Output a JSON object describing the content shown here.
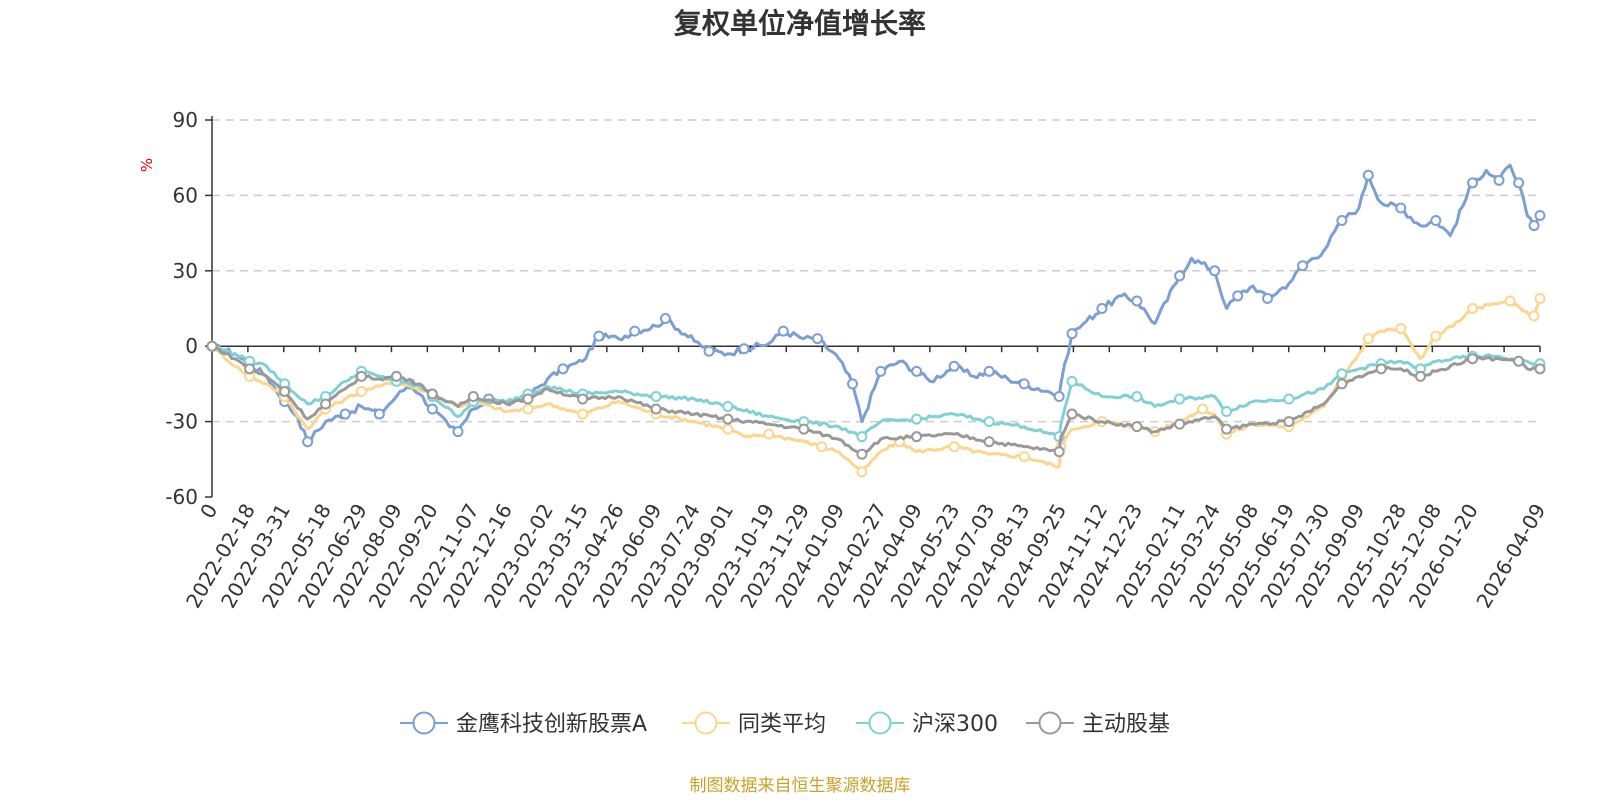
{
  "chart_data": {
    "type": "line",
    "title": "复权单位净值增长率",
    "ylabel": "%",
    "ylim": [
      -60,
      90
    ],
    "yticks": [
      -60,
      -30,
      0,
      30,
      60,
      90
    ],
    "xlim": [
      "2022-01-05",
      "2026-04-09"
    ],
    "x_start_label": "0",
    "x_tick_labels": [
      "2022-02-18",
      "2022-03-31",
      "2022-05-18",
      "2022-06-29",
      "2022-08-09",
      "2022-09-20",
      "2022-11-07",
      "2022-12-16",
      "2023-02-02",
      "2023-03-15",
      "2023-04-26",
      "2023-06-09",
      "2023-07-24",
      "2023-09-01",
      "2023-10-19",
      "2023-11-29",
      "2024-01-09",
      "2024-02-27",
      "2024-04-09",
      "2024-05-23",
      "2024-07-03",
      "2024-08-13",
      "2024-09-25",
      "2024-11-12",
      "2024-12-23",
      "2025-02-11",
      "2025-03-24",
      "2025-05-08",
      "2025-06-19",
      "2025-07-30",
      "2025-09-09",
      "2025-10-28",
      "2025-12-08",
      "2026-01-20",
      "2026-04-09"
    ],
    "grid": true,
    "legend_position": "bottom-center",
    "series": [
      {
        "name": "金鹰科技创新股票A",
        "color": "#7b9fd4",
        "points": [
          [
            "2022-01-05",
            0
          ],
          [
            "2022-02-01",
            -3
          ],
          [
            "2022-02-18",
            -7
          ],
          [
            "2022-03-10",
            -12
          ],
          [
            "2022-03-31",
            -22
          ],
          [
            "2022-04-15",
            -28
          ],
          [
            "2022-04-27",
            -38
          ],
          [
            "2022-05-18",
            -30
          ],
          [
            "2022-06-10",
            -27
          ],
          [
            "2022-06-29",
            -24
          ],
          [
            "2022-07-20",
            -27
          ],
          [
            "2022-08-09",
            -20
          ],
          [
            "2022-08-25",
            -15
          ],
          [
            "2022-09-05",
            -19
          ],
          [
            "2022-09-20",
            -25
          ],
          [
            "2022-10-10",
            -32
          ],
          [
            "2022-10-20",
            -34
          ],
          [
            "2022-11-07",
            -25
          ],
          [
            "2022-11-25",
            -21
          ],
          [
            "2022-12-16",
            -23
          ],
          [
            "2023-01-10",
            -20
          ],
          [
            "2023-02-02",
            -13
          ],
          [
            "2023-02-20",
            -9
          ],
          [
            "2023-03-15",
            -6
          ],
          [
            "2023-04-03",
            4
          ],
          [
            "2023-04-26",
            3
          ],
          [
            "2023-05-15",
            6
          ],
          [
            "2023-06-09",
            8
          ],
          [
            "2023-06-20",
            11
          ],
          [
            "2023-07-24",
            2
          ],
          [
            "2023-08-10",
            -2
          ],
          [
            "2023-09-01",
            -3
          ],
          [
            "2023-09-20",
            -1
          ],
          [
            "2023-10-19",
            1
          ],
          [
            "2023-11-05",
            6
          ],
          [
            "2023-11-29",
            3
          ],
          [
            "2023-12-15",
            3
          ],
          [
            "2024-01-09",
            -5
          ],
          [
            "2024-01-25",
            -15
          ],
          [
            "2024-02-05",
            -30
          ],
          [
            "2024-02-27",
            -10
          ],
          [
            "2024-03-20",
            -6
          ],
          [
            "2024-04-09",
            -10
          ],
          [
            "2024-04-25",
            -14
          ],
          [
            "2024-05-23",
            -8
          ],
          [
            "2024-06-15",
            -12
          ],
          [
            "2024-07-03",
            -10
          ],
          [
            "2024-07-25",
            -13
          ],
          [
            "2024-08-13",
            -15
          ],
          [
            "2024-09-10",
            -18
          ],
          [
            "2024-09-23",
            -20
          ],
          [
            "2024-09-25",
            -15
          ],
          [
            "2024-10-08",
            5
          ],
          [
            "2024-10-25",
            10
          ],
          [
            "2024-11-12",
            15
          ],
          [
            "2024-12-05",
            20
          ],
          [
            "2024-12-23",
            18
          ],
          [
            "2025-01-13",
            9
          ],
          [
            "2025-02-11",
            28
          ],
          [
            "2025-02-25",
            35
          ],
          [
            "2025-03-24",
            30
          ],
          [
            "2025-04-07",
            15
          ],
          [
            "2025-04-20",
            20
          ],
          [
            "2025-05-08",
            24
          ],
          [
            "2025-05-25",
            19
          ],
          [
            "2025-06-19",
            25
          ],
          [
            "2025-07-05",
            32
          ],
          [
            "2025-07-30",
            38
          ],
          [
            "2025-08-20",
            50
          ],
          [
            "2025-09-09",
            55
          ],
          [
            "2025-09-20",
            68
          ],
          [
            "2025-10-05",
            57
          ],
          [
            "2025-10-28",
            55
          ],
          [
            "2025-11-20",
            48
          ],
          [
            "2025-12-08",
            50
          ],
          [
            "2025-12-25",
            44
          ],
          [
            "2026-01-20",
            65
          ],
          [
            "2026-02-05",
            70
          ],
          [
            "2026-02-20",
            66
          ],
          [
            "2026-03-05",
            72
          ],
          [
            "2026-03-15",
            65
          ],
          [
            "2026-03-25",
            52
          ],
          [
            "2026-04-02",
            48
          ],
          [
            "2026-04-09",
            52
          ]
        ]
      },
      {
        "name": "同类平均",
        "color": "#fcd68c",
        "points": [
          [
            "2022-01-05",
            0
          ],
          [
            "2022-02-01",
            -8
          ],
          [
            "2022-02-18",
            -12
          ],
          [
            "2022-03-10",
            -15
          ],
          [
            "2022-03-31",
            -20
          ],
          [
            "2022-04-27",
            -33
          ],
          [
            "2022-05-18",
            -25
          ],
          [
            "2022-06-10",
            -21
          ],
          [
            "2022-06-29",
            -18
          ],
          [
            "2022-07-20",
            -16
          ],
          [
            "2022-08-09",
            -14
          ],
          [
            "2022-08-25",
            -16
          ],
          [
            "2022-09-20",
            -19
          ],
          [
            "2022-10-20",
            -24
          ],
          [
            "2022-11-07",
            -22
          ],
          [
            "2022-12-16",
            -26
          ],
          [
            "2023-01-10",
            -25
          ],
          [
            "2023-02-02",
            -23
          ],
          [
            "2023-03-15",
            -27
          ],
          [
            "2023-04-26",
            -22
          ],
          [
            "2023-06-09",
            -27
          ],
          [
            "2023-07-24",
            -30
          ],
          [
            "2023-09-01",
            -33
          ],
          [
            "2023-09-20",
            -36
          ],
          [
            "2023-10-19",
            -35
          ],
          [
            "2023-11-29",
            -38
          ],
          [
            "2023-12-20",
            -40
          ],
          [
            "2024-01-09",
            -42
          ],
          [
            "2024-02-05",
            -50
          ],
          [
            "2024-02-27",
            -42
          ],
          [
            "2024-03-20",
            -38
          ],
          [
            "2024-04-09",
            -42
          ],
          [
            "2024-05-23",
            -40
          ],
          [
            "2024-07-03",
            -43
          ],
          [
            "2024-08-13",
            -44
          ],
          [
            "2024-09-23",
            -48
          ],
          [
            "2024-09-25",
            -40
          ],
          [
            "2024-10-08",
            -33
          ],
          [
            "2024-11-12",
            -30
          ],
          [
            "2024-12-23",
            -32
          ],
          [
            "2025-01-13",
            -34
          ],
          [
            "2025-02-11",
            -30
          ],
          [
            "2025-03-10",
            -25
          ],
          [
            "2025-03-24",
            -27
          ],
          [
            "2025-04-07",
            -35
          ],
          [
            "2025-05-08",
            -31
          ],
          [
            "2025-06-19",
            -32
          ],
          [
            "2025-07-30",
            -24
          ],
          [
            "2025-08-20",
            -12
          ],
          [
            "2025-09-09",
            -3
          ],
          [
            "2025-09-20",
            3
          ],
          [
            "2025-10-05",
            6
          ],
          [
            "2025-10-28",
            7
          ],
          [
            "2025-11-20",
            -5
          ],
          [
            "2025-12-08",
            4
          ],
          [
            "2026-01-05",
            10
          ],
          [
            "2026-01-20",
            15
          ],
          [
            "2026-02-20",
            17
          ],
          [
            "2026-03-05",
            18
          ],
          [
            "2026-03-20",
            14
          ],
          [
            "2026-04-02",
            12
          ],
          [
            "2026-04-09",
            19
          ]
        ]
      },
      {
        "name": "沪深300",
        "color": "#7fd1d6",
        "points": [
          [
            "2022-01-05",
            0
          ],
          [
            "2022-02-01",
            -3
          ],
          [
            "2022-02-18",
            -6
          ],
          [
            "2022-03-10",
            -8
          ],
          [
            "2022-03-31",
            -15
          ],
          [
            "2022-04-27",
            -23
          ],
          [
            "2022-05-18",
            -20
          ],
          [
            "2022-06-10",
            -14
          ],
          [
            "2022-06-29",
            -10
          ],
          [
            "2022-07-20",
            -12
          ],
          [
            "2022-08-09",
            -14
          ],
          [
            "2022-09-05",
            -16
          ],
          [
            "2022-09-20",
            -20
          ],
          [
            "2022-10-20",
            -28
          ],
          [
            "2022-11-07",
            -22
          ],
          [
            "2022-12-16",
            -22
          ],
          [
            "2023-01-10",
            -19
          ],
          [
            "2023-02-02",
            -16
          ],
          [
            "2023-03-15",
            -19
          ],
          [
            "2023-04-26",
            -18
          ],
          [
            "2023-06-09",
            -20
          ],
          [
            "2023-07-24",
            -21
          ],
          [
            "2023-09-01",
            -24
          ],
          [
            "2023-10-19",
            -28
          ],
          [
            "2023-11-29",
            -30
          ],
          [
            "2024-01-09",
            -32
          ],
          [
            "2024-02-05",
            -36
          ],
          [
            "2024-02-27",
            -30
          ],
          [
            "2024-04-09",
            -29
          ],
          [
            "2024-05-23",
            -27
          ],
          [
            "2024-07-03",
            -30
          ],
          [
            "2024-08-13",
            -32
          ],
          [
            "2024-09-23",
            -36
          ],
          [
            "2024-09-25",
            -31
          ],
          [
            "2024-10-08",
            -14
          ],
          [
            "2024-11-12",
            -20
          ],
          [
            "2024-12-23",
            -20
          ],
          [
            "2025-01-13",
            -24
          ],
          [
            "2025-02-11",
            -21
          ],
          [
            "2025-03-24",
            -20
          ],
          [
            "2025-04-07",
            -26
          ],
          [
            "2025-05-08",
            -22
          ],
          [
            "2025-06-19",
            -21
          ],
          [
            "2025-07-30",
            -17
          ],
          [
            "2025-08-20",
            -11
          ],
          [
            "2025-09-09",
            -9
          ],
          [
            "2025-10-05",
            -7
          ],
          [
            "2025-10-28",
            -6
          ],
          [
            "2025-11-20",
            -9
          ],
          [
            "2025-12-08",
            -6
          ],
          [
            "2026-01-20",
            -4
          ],
          [
            "2026-02-20",
            -4
          ],
          [
            "2026-03-15",
            -6
          ],
          [
            "2026-04-09",
            -7
          ]
        ]
      },
      {
        "name": "主动股基",
        "color": "#999999",
        "points": [
          [
            "2022-01-05",
            0
          ],
          [
            "2022-02-01",
            -5
          ],
          [
            "2022-02-18",
            -9
          ],
          [
            "2022-03-10",
            -12
          ],
          [
            "2022-03-31",
            -18
          ],
          [
            "2022-04-27",
            -29
          ],
          [
            "2022-05-18",
            -23
          ],
          [
            "2022-06-10",
            -17
          ],
          [
            "2022-06-29",
            -12
          ],
          [
            "2022-07-20",
            -13
          ],
          [
            "2022-08-09",
            -12
          ],
          [
            "2022-09-05",
            -15
          ],
          [
            "2022-09-20",
            -19
          ],
          [
            "2022-10-20",
            -24
          ],
          [
            "2022-11-07",
            -20
          ],
          [
            "2022-12-16",
            -23
          ],
          [
            "2023-01-10",
            -21
          ],
          [
            "2023-02-02",
            -17
          ],
          [
            "2023-03-15",
            -21
          ],
          [
            "2023-04-26",
            -20
          ],
          [
            "2023-06-09",
            -25
          ],
          [
            "2023-07-24",
            -27
          ],
          [
            "2023-09-01",
            -29
          ],
          [
            "2023-10-19",
            -31
          ],
          [
            "2023-11-29",
            -33
          ],
          [
            "2024-01-09",
            -37
          ],
          [
            "2024-02-05",
            -43
          ],
          [
            "2024-02-27",
            -37
          ],
          [
            "2024-04-09",
            -36
          ],
          [
            "2024-05-23",
            -35
          ],
          [
            "2024-07-03",
            -38
          ],
          [
            "2024-08-13",
            -40
          ],
          [
            "2024-09-23",
            -42
          ],
          [
            "2024-09-25",
            -36
          ],
          [
            "2024-10-08",
            -27
          ],
          [
            "2024-11-12",
            -30
          ],
          [
            "2024-12-23",
            -32
          ],
          [
            "2025-01-13",
            -34
          ],
          [
            "2025-02-11",
            -31
          ],
          [
            "2025-03-24",
            -28
          ],
          [
            "2025-04-07",
            -33
          ],
          [
            "2025-05-08",
            -31
          ],
          [
            "2025-06-19",
            -30
          ],
          [
            "2025-07-30",
            -23
          ],
          [
            "2025-08-20",
            -15
          ],
          [
            "2025-09-09",
            -12
          ],
          [
            "2025-10-05",
            -9
          ],
          [
            "2025-10-28",
            -9
          ],
          [
            "2025-11-20",
            -12
          ],
          [
            "2025-12-08",
            -10
          ],
          [
            "2026-01-20",
            -5
          ],
          [
            "2026-02-20",
            -5
          ],
          [
            "2026-03-15",
            -6
          ],
          [
            "2026-03-25",
            -9
          ],
          [
            "2026-04-09",
            -9
          ]
        ]
      }
    ]
  },
  "source_note": "制图数据来自恒生聚源数据库"
}
